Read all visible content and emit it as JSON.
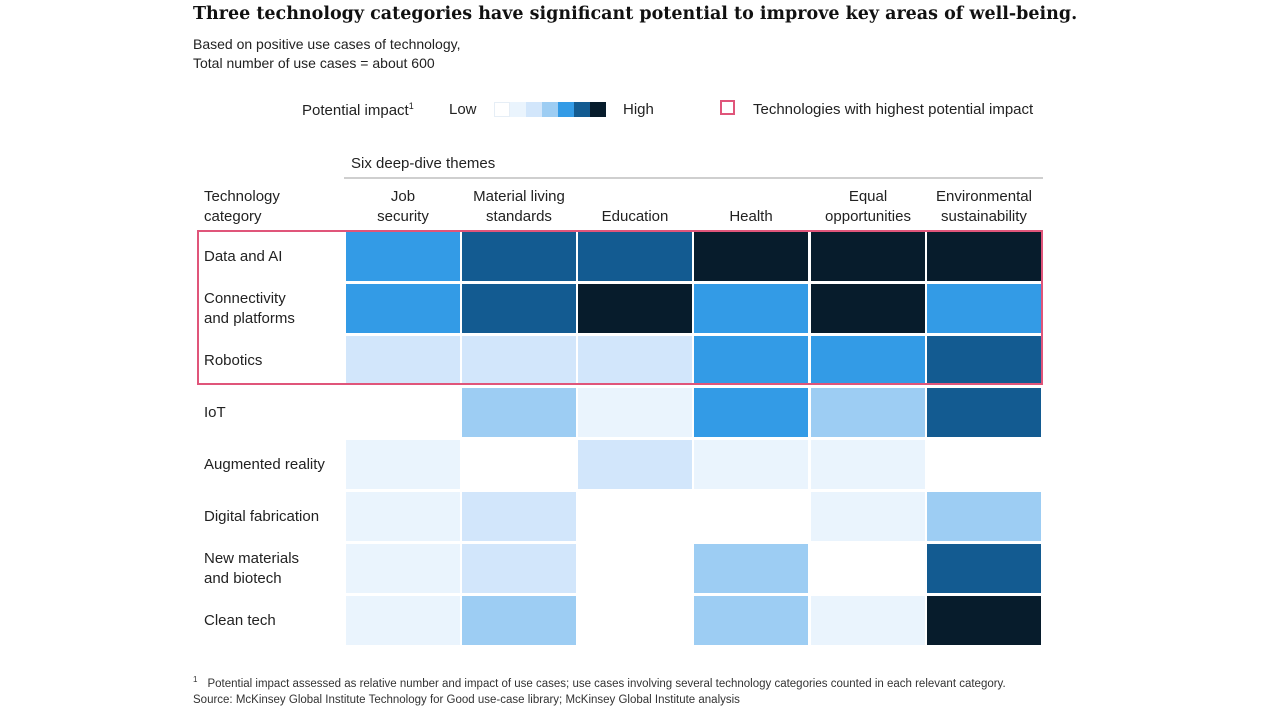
{
  "title": "Three technology categories have significant potential to improve key areas of well-being.",
  "subtitle_line1": "Based on positive use cases of technology,",
  "subtitle_line2": "Total number of use cases = about 600",
  "legend": {
    "potential_impact": "Potential impact",
    "footnote_marker": "1",
    "low": "Low",
    "high": "High",
    "scale_colors": [
      "#ffffff",
      "#eaf4fd",
      "#d2e6fb",
      "#9dcdf3",
      "#339be6",
      "#135b91",
      "#071c2c"
    ],
    "highlight_label": "Technologies with highest potential impact",
    "highlight_color": "#e0557a"
  },
  "chart_data": {
    "type": "heatmap",
    "title": "Three technology categories have significant potential to improve key areas of well-being.",
    "themes_header": "Six deep-dive themes",
    "row_header": [
      "Technology",
      "category"
    ],
    "columns": [
      [
        "Job",
        "security"
      ],
      [
        "Material living",
        "standards"
      ],
      [
        "",
        "Education"
      ],
      [
        "",
        "Health"
      ],
      [
        "Equal",
        "opportunities"
      ],
      [
        "Environmental",
        "sustainability"
      ]
    ],
    "rows": [
      [
        "Data and AI"
      ],
      [
        "Connectivity",
        "and platforms"
      ],
      [
        "Robotics"
      ],
      [
        "IoT"
      ],
      [
        "Augmented reality"
      ],
      [
        "Digital fabrication"
      ],
      [
        "New materials",
        "and biotech"
      ],
      [
        "Clean tech"
      ]
    ],
    "scale": "0 = none, 6 = highest potential impact",
    "values": [
      [
        4,
        5,
        5,
        6,
        6,
        6
      ],
      [
        4,
        5,
        6,
        4,
        6,
        4
      ],
      [
        2,
        2,
        2,
        4,
        4,
        5
      ],
      [
        0,
        3,
        1,
        4,
        3,
        5
      ],
      [
        1,
        0,
        2,
        1,
        1,
        0
      ],
      [
        1,
        2,
        0,
        0,
        1,
        3
      ],
      [
        1,
        2,
        0,
        3,
        0,
        5
      ],
      [
        1,
        3,
        0,
        3,
        1,
        6
      ]
    ],
    "highlighted_rows": [
      "Data and AI",
      "Connectivity and platforms",
      "Robotics"
    ]
  },
  "footnote": {
    "marker": "1",
    "text": "Potential impact assessed as relative number and impact of use cases; use cases involving several technology categories counted in each relevant category."
  },
  "source": "Source: McKinsey Global Institute Technology for Good use-case library; McKinsey Global Institute analysis"
}
